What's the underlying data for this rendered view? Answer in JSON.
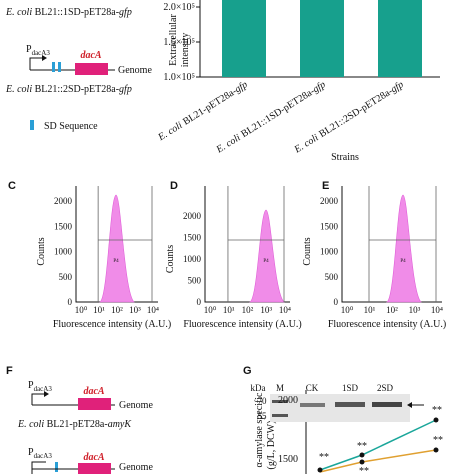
{
  "panel_a": {
    "strain_top": {
      "species": "E. coli",
      "name": "BL21::1SD-pET28a-",
      "gene": "gfp"
    },
    "promoter": "P",
    "promoter_sub": "dacA3",
    "gene": "dacA",
    "genome": "Genome",
    "strain_bottom": {
      "species": "E. coli",
      "name": "BL21::2SD-pET28a-",
      "gene": "gfp"
    },
    "legend": "SD Sequence"
  },
  "panel_b": {
    "y_label_1": "Extracellular",
    "y_label_2": "intensity",
    "yticks": [
      "2.0×10⁵",
      "1.5×10⁵",
      "1.0×10⁵"
    ],
    "categories": [
      {
        "species": "E. coli",
        "name": "BL21-pET28a-",
        "gene": "gfp"
      },
      {
        "species": "E. coli",
        "name": "BL21::1SD-pET28a-",
        "gene": "gfp"
      },
      {
        "species": "E. coli",
        "name": "BL21::2SD-pET28a-",
        "gene": "gfp"
      }
    ],
    "x_label": "Strains"
  },
  "histograms": [
    {
      "letter": "C",
      "y_label": "Counts",
      "yticks": [
        "2000",
        "1500",
        "1000",
        "500",
        "0"
      ],
      "xticks": [
        "10⁰",
        "10¹",
        "10²",
        "10³",
        "10⁴"
      ],
      "gate": "P4",
      "x_label": "Fluorescence intensity (A.U.)"
    },
    {
      "letter": "D",
      "y_label": "Counts",
      "yticks": [
        "2000",
        "1500",
        "1000",
        "500",
        "0"
      ],
      "xticks": [
        "10⁰",
        "10¹",
        "10²",
        "10³",
        "10⁴"
      ],
      "gate": "P4",
      "x_label": "Fluorescence intensity (A.U.)"
    },
    {
      "letter": "E",
      "y_label": "Counts",
      "yticks": [
        "2000",
        "1500",
        "1000",
        "500",
        "0"
      ],
      "xticks": [
        "10⁰",
        "10¹",
        "10²",
        "10³",
        "10⁴"
      ],
      "gate": "P4",
      "x_label": "Fluorescence intensity (A.U.)"
    }
  ],
  "panel_f": {
    "letter": "F",
    "promoter": "P",
    "promoter_sub": "dacA3",
    "gene": "dacA",
    "genome": "Genome",
    "strain": {
      "species": "E. coli",
      "name": "BL21-pET28a-",
      "gene": "amyK"
    },
    "gene_2": "dacA",
    "genome_2": "Genome"
  },
  "panel_g": {
    "letter": "G",
    "y_label": "α-amylase specific",
    "y_label_2": "(g/L, DCW)",
    "yticks": [
      "2000",
      "1500"
    ],
    "gel_labels": [
      "kDa",
      "M",
      "CK",
      "1SD",
      "2SD"
    ],
    "markers": [
      "70",
      "55"
    ],
    "significance": [
      "**",
      "**",
      "**",
      "**",
      "**"
    ]
  }
}
